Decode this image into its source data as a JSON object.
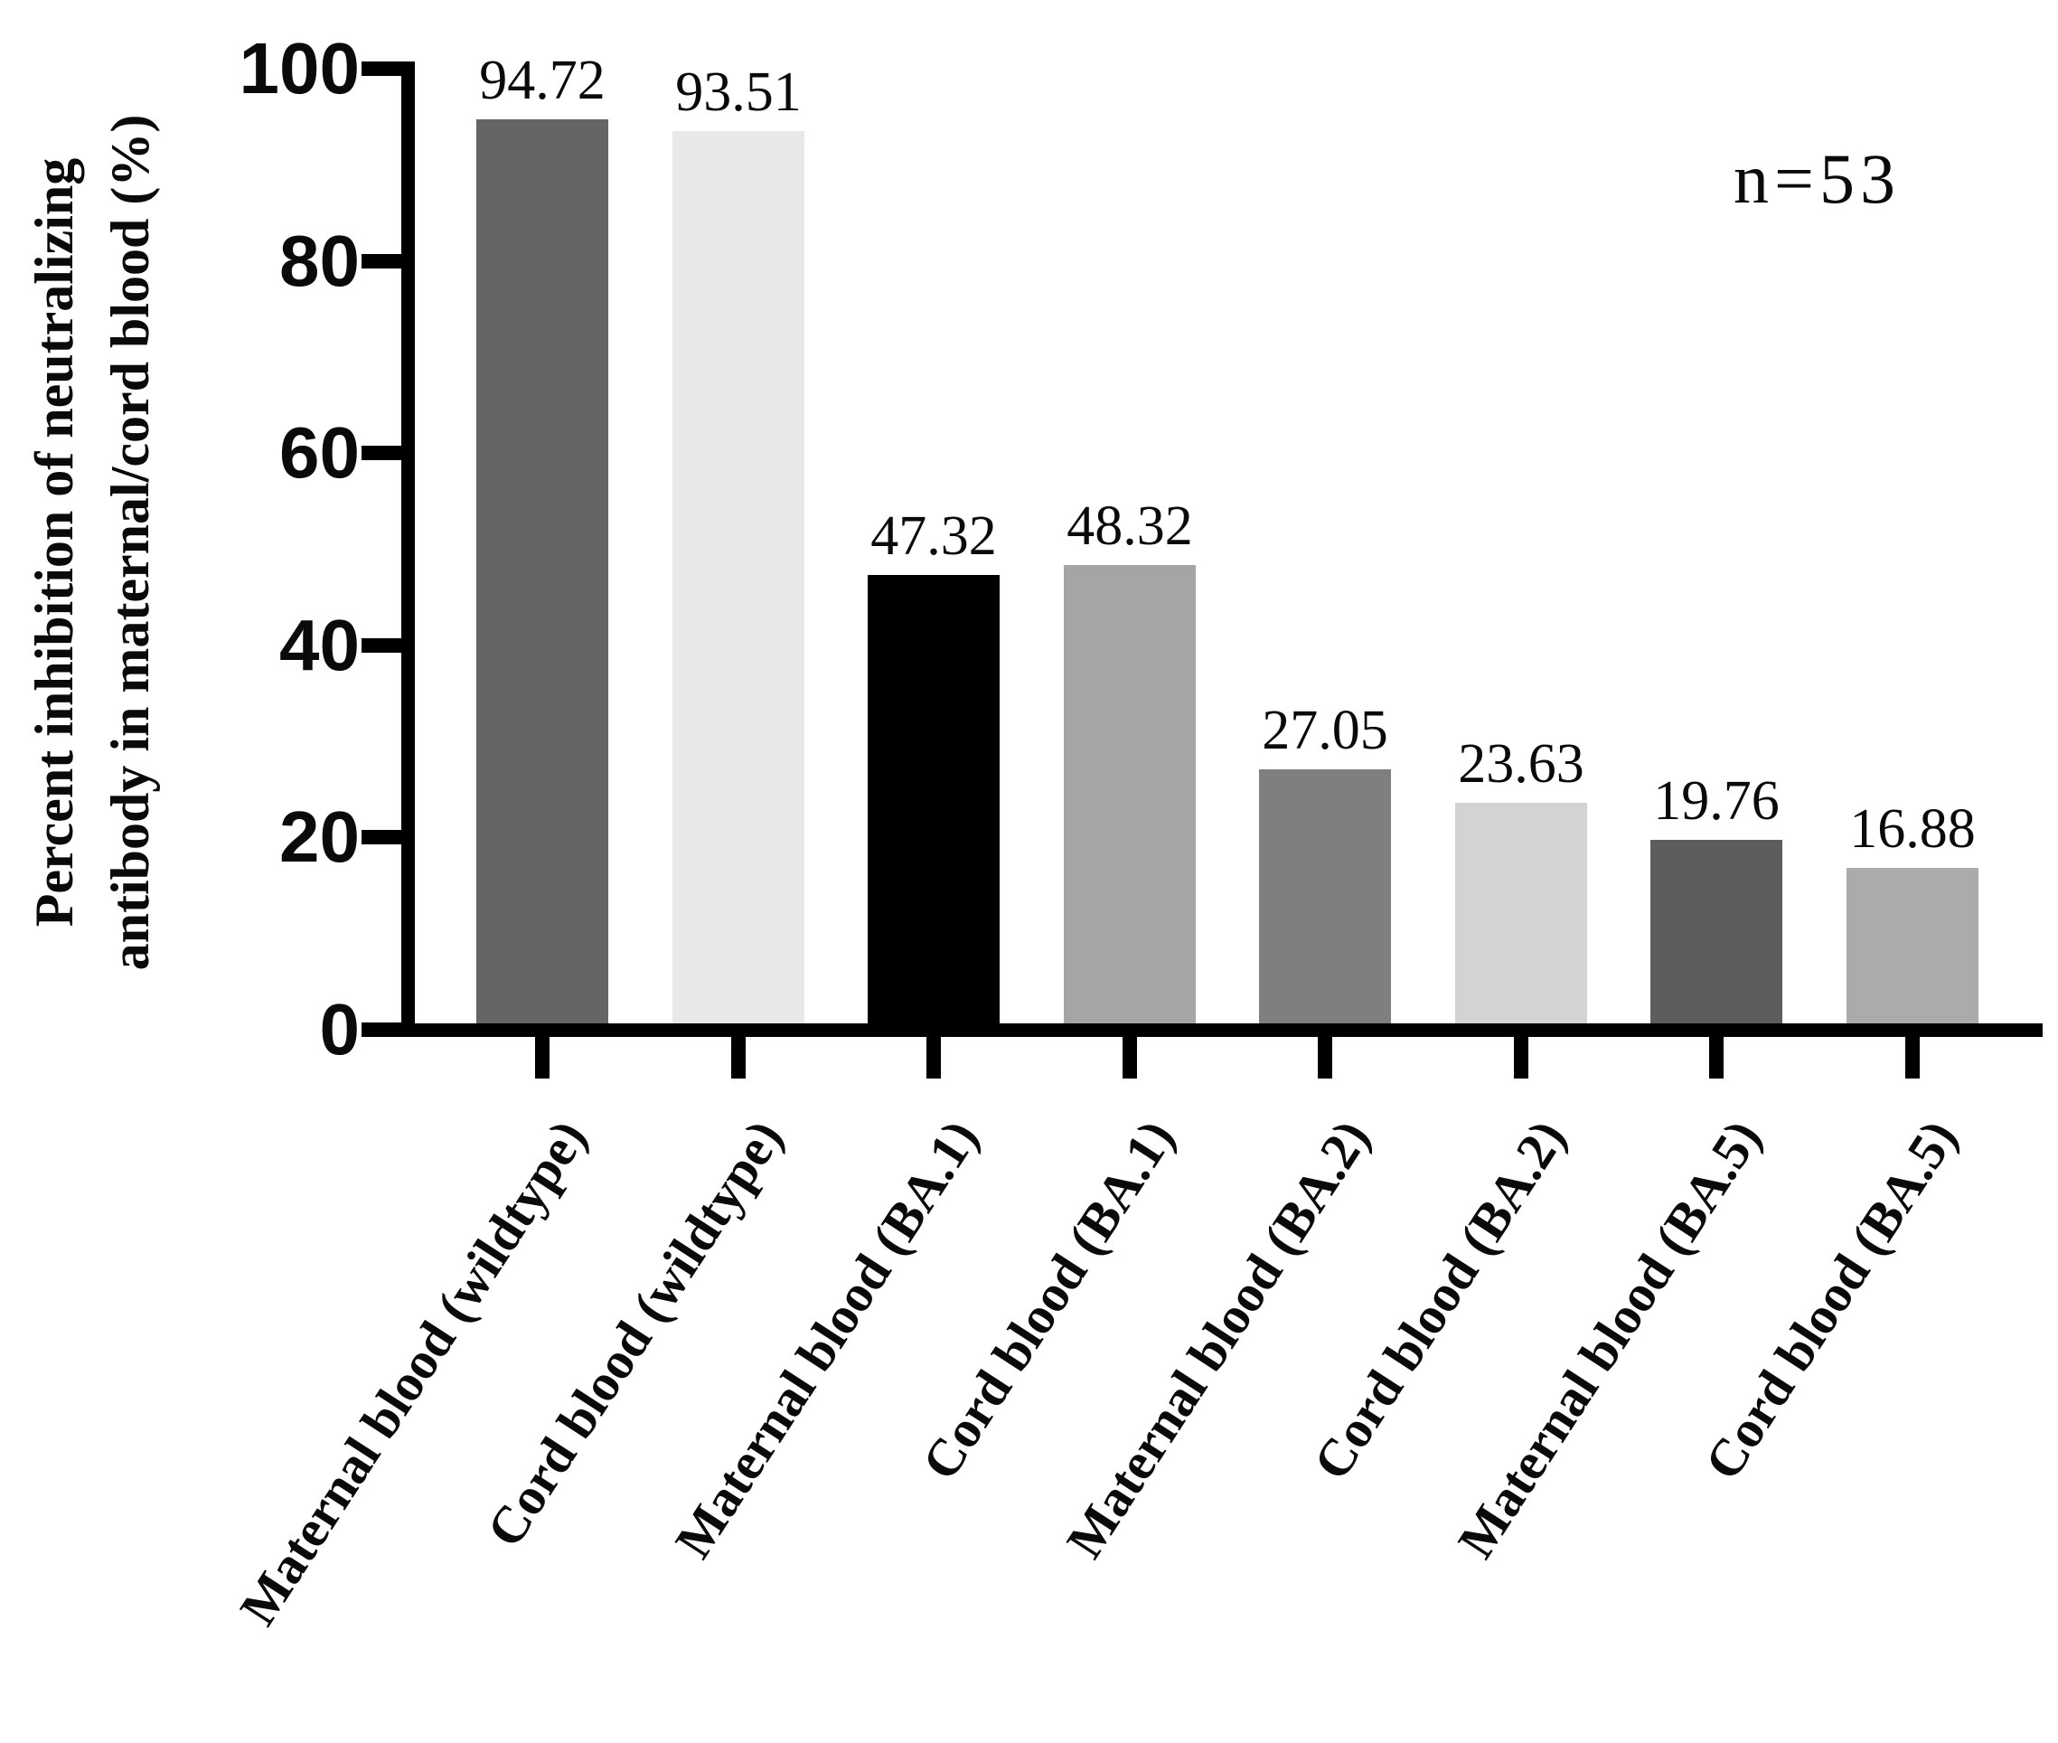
{
  "figure": {
    "annotation": "n=53",
    "y_axis": {
      "title_line1": "Percent inhibition of neutralizing",
      "title_line2": "antibody in maternal/cord blood (%)",
      "ticks": [
        "100",
        "80",
        "60",
        "40",
        "20",
        "0"
      ]
    },
    "bars": [
      {
        "label": "Maternal blood (wildtype)",
        "value": 94.72,
        "value_label": "94.72",
        "color": "#656565"
      },
      {
        "label": "Cord blood (wildtype)",
        "value": 93.51,
        "value_label": "93.51",
        "color": "#e8e8e8"
      },
      {
        "label": "Maternal blood (BA.1)",
        "value": 47.32,
        "value_label": "47.32",
        "color": "#000000"
      },
      {
        "label": "Cord blood (BA.1)",
        "value": 48.32,
        "value_label": "48.32",
        "color": "#a5a5a5"
      },
      {
        "label": "Maternal blood (BA.2)",
        "value": 27.05,
        "value_label": "27.05",
        "color": "#7f7f7f"
      },
      {
        "label": "Cord blood (BA.2)",
        "value": 23.63,
        "value_label": "23.63",
        "color": "#d3d3d3"
      },
      {
        "label": "Maternal blood (BA.5)",
        "value": 19.76,
        "value_label": "19.76",
        "color": "#5d5d5d"
      },
      {
        "label": "Cord blood (BA.5)",
        "value": 16.88,
        "value_label": "16.88",
        "color": "#ababab"
      }
    ]
  },
  "chart_data": {
    "type": "bar",
    "categories": [
      "Maternal blood (wildtype)",
      "Cord blood (wildtype)",
      "Maternal blood (BA.1)",
      "Cord blood (BA.1)",
      "Maternal blood (BA.2)",
      "Cord blood (BA.2)",
      "Maternal blood (BA.5)",
      "Cord blood (BA.5)"
    ],
    "values": [
      94.72,
      93.51,
      47.32,
      48.32,
      27.05,
      23.63,
      19.76,
      16.88
    ],
    "bar_colors": [
      "#656565",
      "#e8e8e8",
      "#000000",
      "#a5a5a5",
      "#7f7f7f",
      "#d3d3d3",
      "#5d5d5d",
      "#ababab"
    ],
    "title": "",
    "xlabel": "",
    "ylabel": "Percent inhibition of neutralizing antibody in maternal/cord blood (%)",
    "ylim": [
      0,
      100
    ],
    "yticks": [
      0,
      20,
      40,
      60,
      80,
      100
    ],
    "annotations": [
      "n=53"
    ],
    "grid": false,
    "legend_position": "none",
    "bar_value_labels_shown": true,
    "x_label_rotation_deg": 57
  }
}
